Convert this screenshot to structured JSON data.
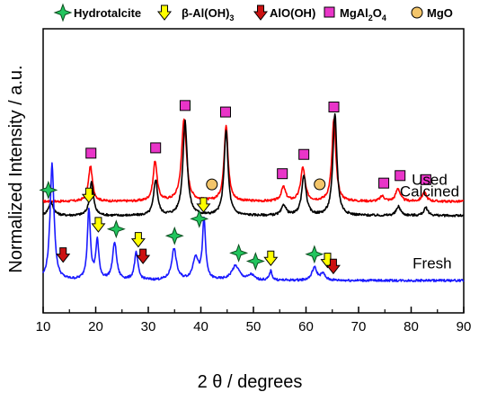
{
  "chart_data": {
    "type": "line",
    "xlabel": "2 θ / degrees",
    "ylabel": "Normalized Intensity / a.u.",
    "xlim": [
      10,
      90
    ],
    "xticks": [
      10,
      20,
      30,
      40,
      50,
      60,
      70,
      80,
      90
    ],
    "legend": {
      "placement": "top",
      "items": [
        {
          "label": "Hydrotalcite",
          "marker": "star",
          "color": "#22c55e"
        },
        {
          "label": "β-Al(OH)",
          "subscript": "3",
          "marker": "down-arrow",
          "color": "#ffff00"
        },
        {
          "label": "AlO(OH)",
          "marker": "down-arrow",
          "color": "#cc1111"
        },
        {
          "label": "MgAl",
          "subscript": "2",
          "label_tail": "O",
          "subscript2": "4",
          "marker": "square",
          "color": "#e935c8"
        },
        {
          "label": "MgO",
          "marker": "circle",
          "color": "#f3c56a"
        }
      ]
    },
    "series": [
      {
        "name": "Used",
        "color": "#ff0000",
        "baseline_level": 0.22,
        "peaks": [
          [
            19.0,
            0.55,
            0.45
          ],
          [
            31.3,
            0.62,
            0.45
          ],
          [
            36.8,
            1.28,
            0.55
          ],
          [
            44.8,
            1.18,
            0.45
          ],
          [
            55.7,
            0.22,
            0.5
          ],
          [
            59.4,
            0.52,
            0.5
          ],
          [
            65.3,
            1.26,
            0.45
          ],
          [
            74.5,
            0.08,
            0.5
          ],
          [
            77.5,
            0.2,
            0.5
          ],
          [
            82.5,
            0.14,
            0.5
          ]
        ],
        "markers": [
          {
            "type": "square",
            "x": [
              19.1,
              31.4,
              37.0,
              44.7,
              55.5,
              59.6,
              65.3,
              74.8,
              77.9,
              82.8
            ]
          },
          {
            "type": "circle",
            "x": [
              42.1,
              62.6
            ]
          }
        ]
      },
      {
        "name": "Calcined",
        "color": "#000000",
        "baseline_level": 0.0,
        "peaks": [
          [
            11.5,
            0.2,
            0.6
          ],
          [
            19.2,
            0.52,
            0.45
          ],
          [
            31.4,
            0.55,
            0.45
          ],
          [
            37.0,
            1.45,
            0.5
          ],
          [
            44.8,
            1.32,
            0.45
          ],
          [
            55.8,
            0.16,
            0.5
          ],
          [
            59.6,
            0.62,
            0.5
          ],
          [
            65.5,
            1.58,
            0.45
          ],
          [
            77.6,
            0.14,
            0.5
          ],
          [
            82.8,
            0.12,
            0.5
          ]
        ],
        "markers": [
          {
            "type": "star",
            "x": [
              11.0
            ]
          }
        ]
      },
      {
        "name": "Fresh",
        "color": "#1a1aff",
        "baseline_level": -1.0,
        "peaks": [
          [
            11.7,
            1.8,
            0.45
          ],
          [
            18.7,
            1.08,
            0.35
          ],
          [
            20.3,
            0.6,
            0.35
          ],
          [
            23.6,
            0.58,
            0.45
          ],
          [
            27.7,
            0.42,
            0.4
          ],
          [
            34.9,
            0.48,
            0.55
          ],
          [
            39.0,
            0.35,
            0.6
          ],
          [
            40.6,
            0.92,
            0.35
          ],
          [
            46.6,
            0.22,
            0.9
          ],
          [
            49.6,
            0.08,
            0.6
          ],
          [
            53.3,
            0.14,
            0.3
          ],
          [
            61.6,
            0.2,
            0.55
          ],
          [
            63.2,
            0.1,
            0.5
          ]
        ],
        "markers": [
          {
            "type": "star",
            "x": [
              23.9,
              35.0,
              39.7,
              47.2,
              50.4,
              61.6
            ]
          },
          {
            "type": "arrow-yellow",
            "x": [
              18.7,
              20.5,
              28.1,
              40.5,
              53.3,
              64.1
            ]
          },
          {
            "type": "arrow-red",
            "x": [
              13.8,
              29.0,
              65.2
            ]
          }
        ]
      }
    ]
  }
}
